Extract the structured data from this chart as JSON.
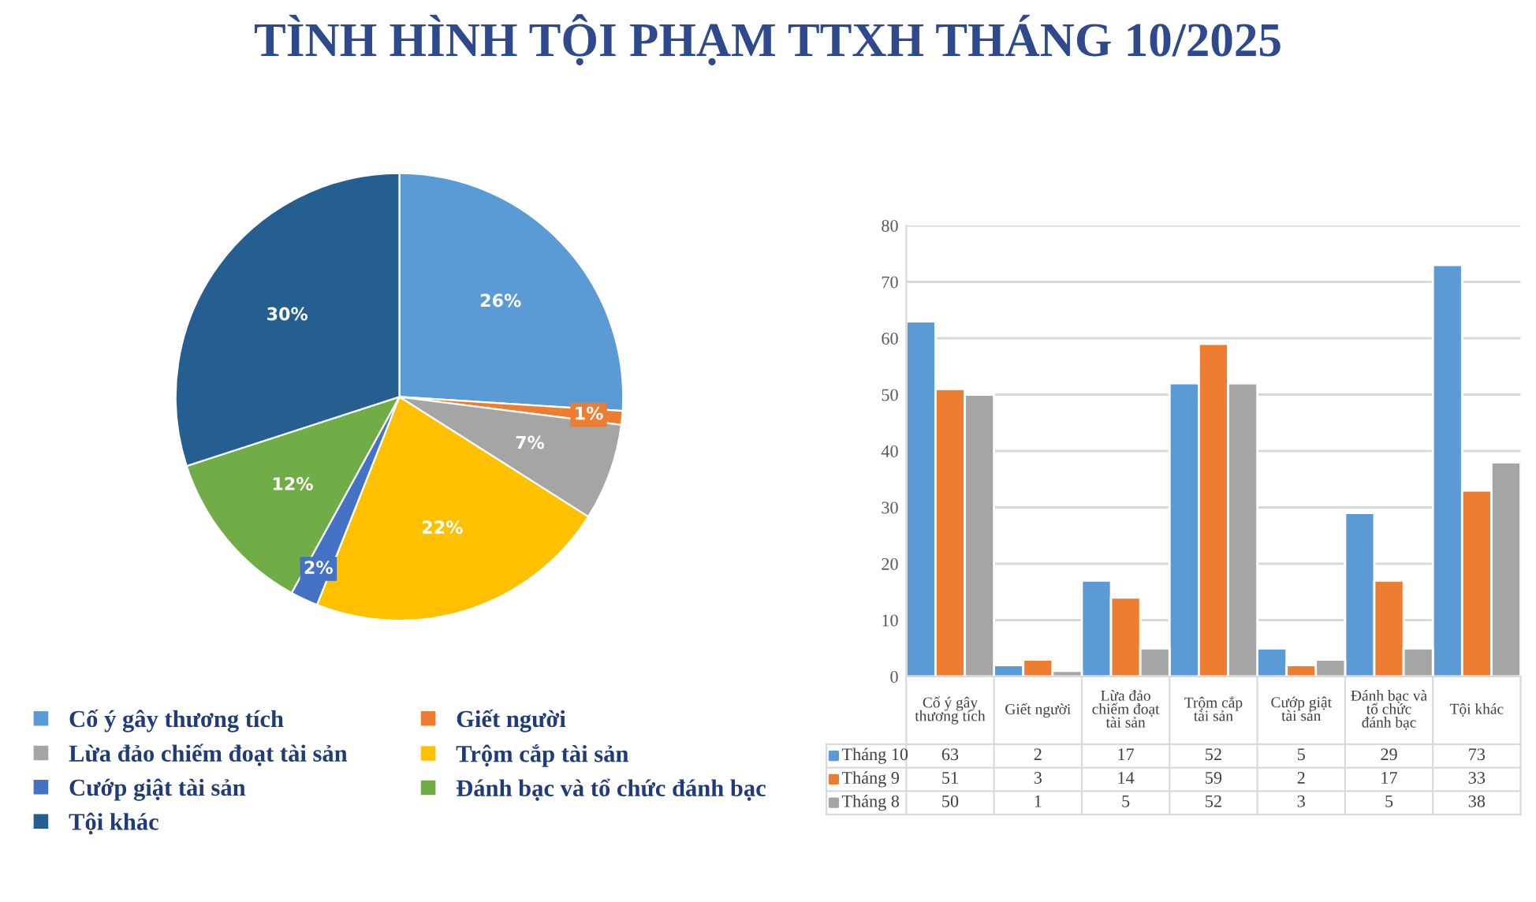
{
  "chart_data": [
    {
      "type": "pie",
      "title": "TÌNH HÌNH TỘI PHẠM TTXH THÁNG 10/2025",
      "categories": [
        "Cố ý gây thương tích",
        "Giết người",
        "Lừa đảo chiếm đoạt tài sản",
        "Trộm cắp tài sản",
        "Cướp giật tài sản",
        "Đánh bạc và tổ chức đánh bạc",
        "Tội khác"
      ],
      "values": [
        26,
        1,
        7,
        22,
        2,
        12,
        30
      ],
      "value_labels": [
        "26%",
        "1%",
        "7%",
        "22%",
        "2%",
        "12%",
        "30%"
      ],
      "colors": [
        "#5b9bd5",
        "#ed7d31",
        "#a5a5a5",
        "#ffc000",
        "#4472c4",
        "#70ad47",
        "#255e91"
      ],
      "legend": "bottom"
    },
    {
      "type": "bar",
      "categories": [
        "Cố ý gây thương tích",
        "Giết người",
        "Lừa đảo chiếm đoạt tài sản",
        "Trộm cắp tài sản",
        "Cướp giật tài sản",
        "Đánh bạc và tổ chức đánh bạc",
        "Tội khác"
      ],
      "series": [
        {
          "name": "Tháng 10",
          "color": "#5b9bd5",
          "values": [
            63,
            2,
            17,
            52,
            5,
            29,
            73
          ]
        },
        {
          "name": "Tháng 9",
          "color": "#ed7d31",
          "values": [
            51,
            3,
            14,
            59,
            2,
            17,
            33
          ]
        },
        {
          "name": "Tháng 8",
          "color": "#a5a5a5",
          "values": [
            50,
            1,
            5,
            52,
            3,
            5,
            38
          ]
        }
      ],
      "ylim": [
        0,
        80
      ],
      "yticks": [
        0,
        10,
        20,
        30,
        40,
        50,
        60,
        70,
        80
      ],
      "grid": "y",
      "legend": "bottom",
      "data_labels": true
    }
  ]
}
